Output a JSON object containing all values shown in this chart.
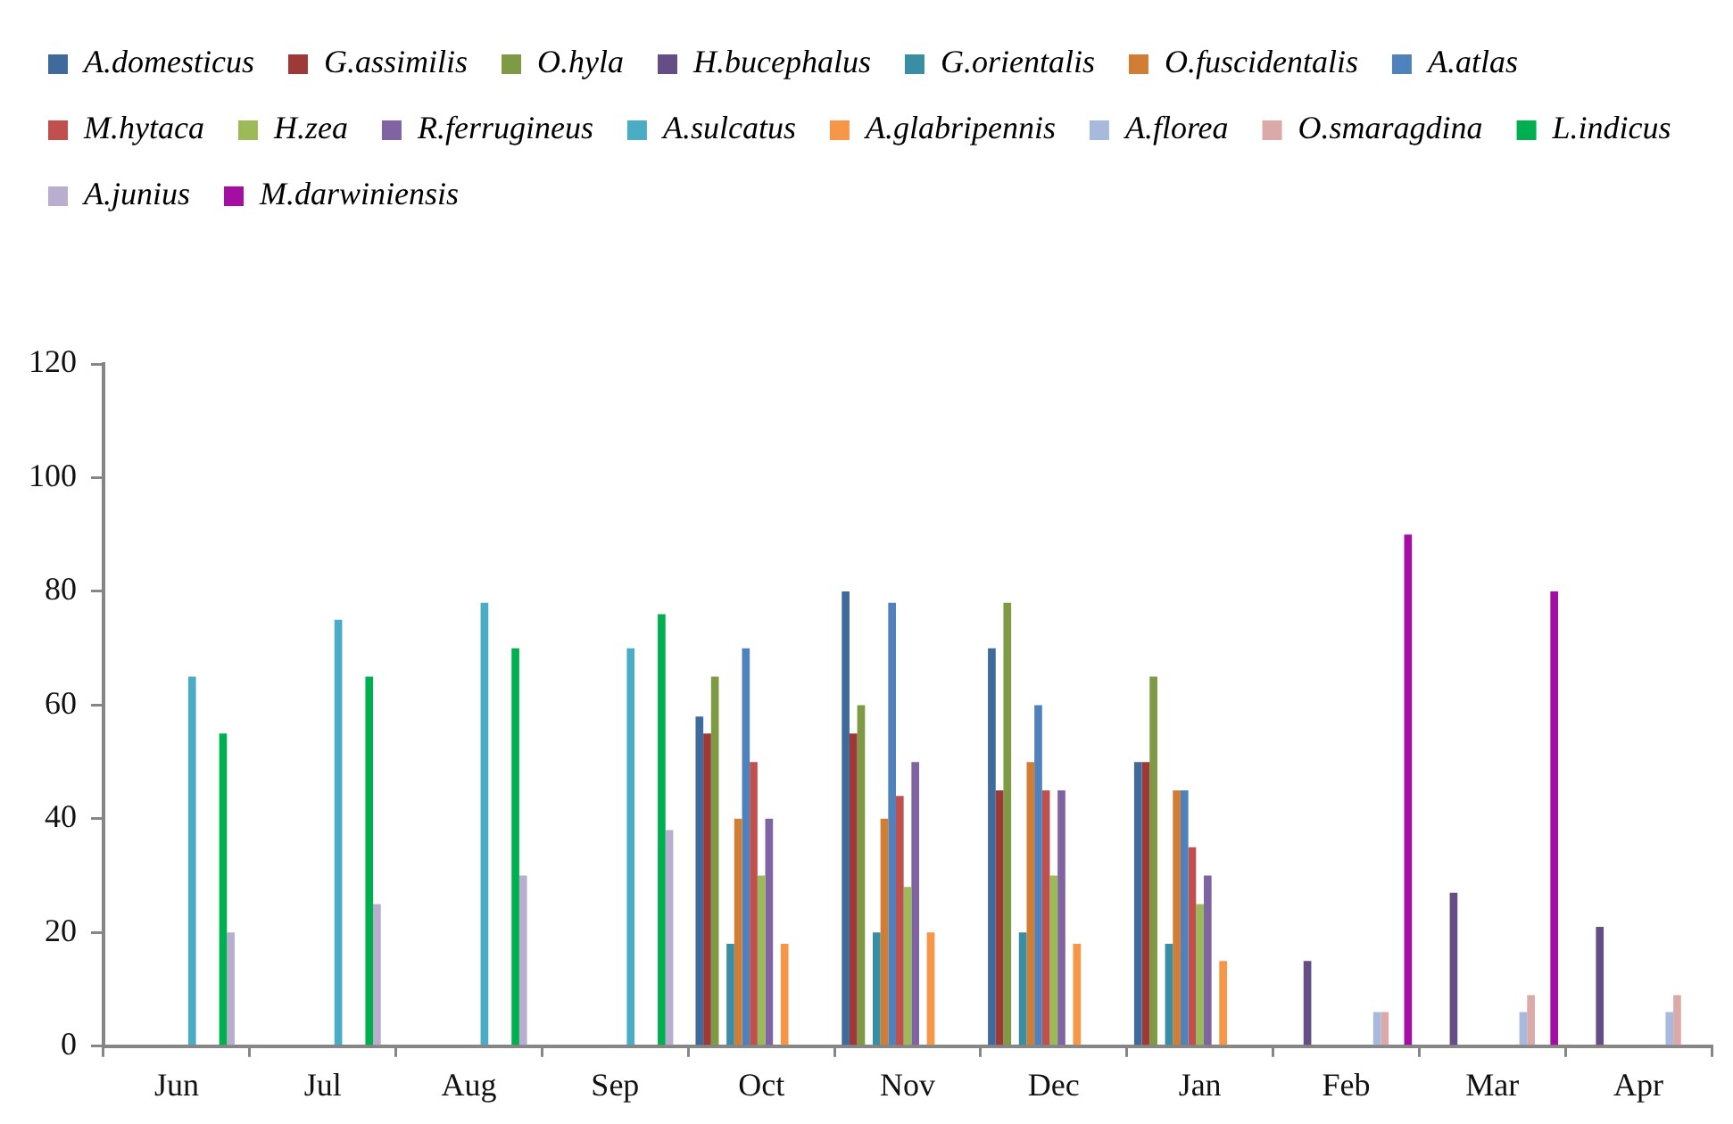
{
  "chart_data": {
    "type": "bar",
    "categories": [
      "Jun",
      "Jul",
      "Aug",
      "Sep",
      "Oct",
      "Nov",
      "Dec",
      "Jan",
      "Feb",
      "Mar",
      "Apr"
    ],
    "series": [
      {
        "name": "A.domesticus",
        "color": "#3f6a9c",
        "values": [
          null,
          null,
          null,
          null,
          58,
          80,
          70,
          50,
          null,
          null,
          null
        ]
      },
      {
        "name": "G.assimilis",
        "color": "#9d3a37",
        "values": [
          null,
          null,
          null,
          null,
          55,
          55,
          45,
          50,
          null,
          null,
          null
        ]
      },
      {
        "name": "O.hyla",
        "color": "#7e9a45",
        "values": [
          null,
          null,
          null,
          null,
          65,
          60,
          78,
          65,
          null,
          null,
          null
        ]
      },
      {
        "name": "H.bucephalus",
        "color": "#654d86",
        "values": [
          null,
          null,
          null,
          null,
          null,
          null,
          null,
          null,
          15,
          27,
          21
        ]
      },
      {
        "name": "G.orientalis",
        "color": "#3a8ea3",
        "values": [
          null,
          null,
          null,
          null,
          18,
          20,
          20,
          18,
          null,
          null,
          null
        ]
      },
      {
        "name": "O.fuscidentalis",
        "color": "#d17d34",
        "values": [
          null,
          null,
          null,
          null,
          40,
          40,
          50,
          45,
          null,
          null,
          null
        ]
      },
      {
        "name": "A.atlas",
        "color": "#4f81bd",
        "values": [
          null,
          null,
          null,
          null,
          70,
          78,
          60,
          45,
          null,
          null,
          null
        ]
      },
      {
        "name": "M.hytaca",
        "color": "#c0504d",
        "values": [
          null,
          null,
          null,
          null,
          50,
          44,
          45,
          35,
          null,
          null,
          null
        ]
      },
      {
        "name": "H.zea",
        "color": "#9bbb59",
        "values": [
          null,
          null,
          null,
          null,
          30,
          28,
          30,
          25,
          null,
          null,
          null
        ]
      },
      {
        "name": "R.ferrugineus",
        "color": "#8064a2",
        "values": [
          null,
          null,
          null,
          null,
          40,
          50,
          45,
          30,
          null,
          null,
          null
        ]
      },
      {
        "name": "A.sulcatus",
        "color": "#4bacc6",
        "values": [
          65,
          75,
          78,
          70,
          null,
          null,
          null,
          null,
          null,
          null,
          null
        ]
      },
      {
        "name": "A.glabripennis",
        "color": "#f79646",
        "values": [
          null,
          null,
          null,
          null,
          18,
          20,
          18,
          15,
          null,
          null,
          null
        ]
      },
      {
        "name": "A.florea",
        "color": "#a7b9dc",
        "values": [
          null,
          null,
          null,
          null,
          null,
          null,
          null,
          null,
          6,
          6,
          6
        ]
      },
      {
        "name": "O.smaragdina",
        "color": "#dba9a8",
        "values": [
          null,
          null,
          null,
          null,
          null,
          null,
          null,
          null,
          6,
          9,
          9
        ]
      },
      {
        "name": "L.indicus",
        "color": "#00b050",
        "values": [
          55,
          65,
          70,
          76,
          null,
          null,
          null,
          null,
          null,
          null,
          null
        ]
      },
      {
        "name": "A.junius",
        "color": "#b9aed0",
        "values": [
          20,
          25,
          30,
          38,
          null,
          null,
          null,
          null,
          null,
          null,
          null
        ]
      },
      {
        "name": "M.darwiniensis",
        "color": "#a50ea5",
        "values": [
          null,
          null,
          null,
          null,
          null,
          null,
          null,
          null,
          90,
          80,
          null
        ]
      }
    ],
    "ylim": [
      0,
      120
    ],
    "yticks": [
      0,
      20,
      40,
      60,
      80,
      100,
      120
    ],
    "grid": false,
    "legend": "top"
  }
}
